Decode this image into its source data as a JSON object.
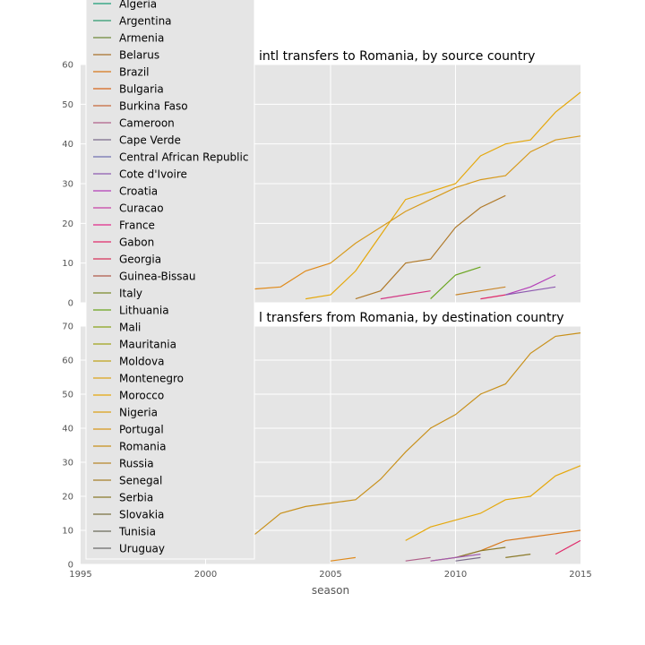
{
  "chart_data": [
    {
      "type": "line",
      "title": "intl transfers to Romania, by source country",
      "xlabel": "",
      "ylabel": "",
      "xlim": [
        1995,
        2015
      ],
      "ylim": [
        0,
        60
      ],
      "xticks": [],
      "yticks": [
        0,
        10,
        20,
        30,
        40,
        50,
        60
      ],
      "grid": true,
      "series": [
        {
          "x": [
            2001,
            2002,
            2003,
            2004,
            2005
          ],
          "y": [
            3,
            3.5,
            4,
            8,
            10
          ],
          "color": "#e08a1a"
        },
        {
          "x": [
            2004,
            2005,
            2006,
            2007,
            2008,
            2009,
            2010,
            2011,
            2012,
            2013,
            2014,
            2015
          ],
          "y": [
            1,
            2,
            8,
            17,
            26,
            28,
            30,
            37,
            40,
            41,
            48,
            53
          ],
          "color": "#e5a80c"
        },
        {
          "x": [
            2005,
            2006,
            2007,
            2008,
            2009,
            2010,
            2011,
            2012,
            2013,
            2014,
            2015
          ],
          "y": [
            10,
            15,
            19,
            23,
            26,
            29,
            31,
            32,
            38,
            41,
            42
          ],
          "color": "#d79a1c"
        },
        {
          "x": [
            2006,
            2007,
            2008,
            2009,
            2010,
            2011,
            2012
          ],
          "y": [
            1,
            3,
            10,
            11,
            19,
            24,
            27
          ],
          "color": "#b07a2a"
        },
        {
          "x": [
            2007,
            2008,
            2009
          ],
          "y": [
            1,
            2,
            3
          ],
          "color": "#d33a85"
        },
        {
          "x": [
            2009,
            2010,
            2011
          ],
          "y": [
            1,
            7,
            9
          ],
          "color": "#6aa51f"
        },
        {
          "x": [
            2010,
            2011,
            2012
          ],
          "y": [
            2,
            3,
            4
          ],
          "color": "#c9862a"
        },
        {
          "x": [
            2011,
            2012
          ],
          "y": [
            1,
            2
          ],
          "color": "#e02a6a"
        },
        {
          "x": [
            2012,
            2013,
            2014
          ],
          "y": [
            2,
            4,
            7
          ],
          "color": "#b43fb8"
        },
        {
          "x": [
            2012,
            2013,
            2014
          ],
          "y": [
            2,
            3,
            4
          ],
          "color": "#8e5ab0"
        }
      ]
    },
    {
      "type": "line",
      "title": "l transfers from Romania, by destination country",
      "xlabel": "season",
      "ylabel": "",
      "xlim": [
        1995,
        2015
      ],
      "ylim": [
        0,
        70
      ],
      "xticks": [
        1995,
        2000,
        2005,
        2010,
        2015
      ],
      "yticks": [
        0,
        10,
        20,
        30,
        40,
        50,
        60,
        70
      ],
      "grid": true,
      "series": [
        {
          "x": [
            2001,
            2002,
            2003,
            2004,
            2005,
            2006,
            2007,
            2008,
            2009,
            2010,
            2011,
            2012,
            2013,
            2014,
            2015
          ],
          "y": [
            4,
            9,
            15,
            17,
            18,
            19,
            25,
            33,
            40,
            44,
            50,
            53,
            62,
            67,
            68
          ],
          "color": "#c8901a"
        },
        {
          "x": [
            2008,
            2009,
            2010,
            2011,
            2012,
            2013,
            2014,
            2015
          ],
          "y": [
            7,
            11,
            13,
            15,
            19,
            20,
            26,
            29
          ],
          "color": "#e5a80c"
        },
        {
          "x": [
            2011,
            2012,
            2013,
            2014,
            2015
          ],
          "y": [
            4,
            7,
            8,
            9,
            10
          ],
          "color": "#d8781a"
        },
        {
          "x": [
            2005,
            2006
          ],
          "y": [
            1,
            2
          ],
          "color": "#e08a1a"
        },
        {
          "x": [
            2008,
            2009
          ],
          "y": [
            1,
            2
          ],
          "color": "#b0608a"
        },
        {
          "x": [
            2009,
            2010,
            2011
          ],
          "y": [
            1,
            2,
            4
          ],
          "color": "#c87a3a"
        },
        {
          "x": [
            2010,
            2011,
            2012
          ],
          "y": [
            2,
            4,
            5
          ],
          "color": "#8b7a2a"
        },
        {
          "x": [
            2009,
            2010,
            2011
          ],
          "y": [
            1,
            2,
            3
          ],
          "color": "#a05ab0"
        },
        {
          "x": [
            2010,
            2011
          ],
          "y": [
            1,
            2
          ],
          "color": "#7a6a8a"
        },
        {
          "x": [
            2012,
            2013
          ],
          "y": [
            2,
            3
          ],
          "color": "#8b7a2a"
        },
        {
          "x": [
            2014,
            2015
          ],
          "y": [
            3,
            7
          ],
          "color": "#e02a6a"
        }
      ]
    }
  ],
  "legend": {
    "placement": "upper-left",
    "entries": [
      {
        "label": "Algeria",
        "color": "#1a9e77"
      },
      {
        "label": "Argentina",
        "color": "#2f9a6f"
      },
      {
        "label": "Armenia",
        "color": "#6f8a3a"
      },
      {
        "label": "Belarus",
        "color": "#a8722a"
      },
      {
        "label": "Brazil",
        "color": "#d8781a"
      },
      {
        "label": "Bulgaria",
        "color": "#d8661a"
      },
      {
        "label": "Burkina Faso",
        "color": "#c8683a"
      },
      {
        "label": "Cameroon",
        "color": "#b0608a"
      },
      {
        "label": "Cape Verde",
        "color": "#7a6a8a"
      },
      {
        "label": "Central African Republic",
        "color": "#7070b0"
      },
      {
        "label": "Cote d'Ivoire",
        "color": "#8e5ab0"
      },
      {
        "label": "Croatia",
        "color": "#b43fb8"
      },
      {
        "label": "Curacao",
        "color": "#c840a8"
      },
      {
        "label": "France",
        "color": "#e02a8a"
      },
      {
        "label": "Gabon",
        "color": "#e02a6a"
      },
      {
        "label": "Georgia",
        "color": "#d8305a"
      },
      {
        "label": "Guinea-Bissau",
        "color": "#b05a4a"
      },
      {
        "label": "Italy",
        "color": "#7a8a2a"
      },
      {
        "label": "Lithuania",
        "color": "#6aa51f"
      },
      {
        "label": "Mali",
        "color": "#8aa51a"
      },
      {
        "label": "Mauritania",
        "color": "#a0a51a"
      },
      {
        "label": "Moldova",
        "color": "#c0a51a"
      },
      {
        "label": "Montenegro",
        "color": "#dca51a"
      },
      {
        "label": "Morocco",
        "color": "#e5a80c"
      },
      {
        "label": "Nigeria",
        "color": "#dca018"
      },
      {
        "label": "Portugal",
        "color": "#d8981a"
      },
      {
        "label": "Romania",
        "color": "#c8901a"
      },
      {
        "label": "Russia",
        "color": "#b8882a"
      },
      {
        "label": "Senegal",
        "color": "#a8802a"
      },
      {
        "label": "Serbia",
        "color": "#8b7a2a"
      },
      {
        "label": "Slovakia",
        "color": "#7a7040"
      },
      {
        "label": "Tunisia",
        "color": "#6a6a5a"
      },
      {
        "label": "Uruguay",
        "color": "#6a6a6a"
      }
    ]
  }
}
